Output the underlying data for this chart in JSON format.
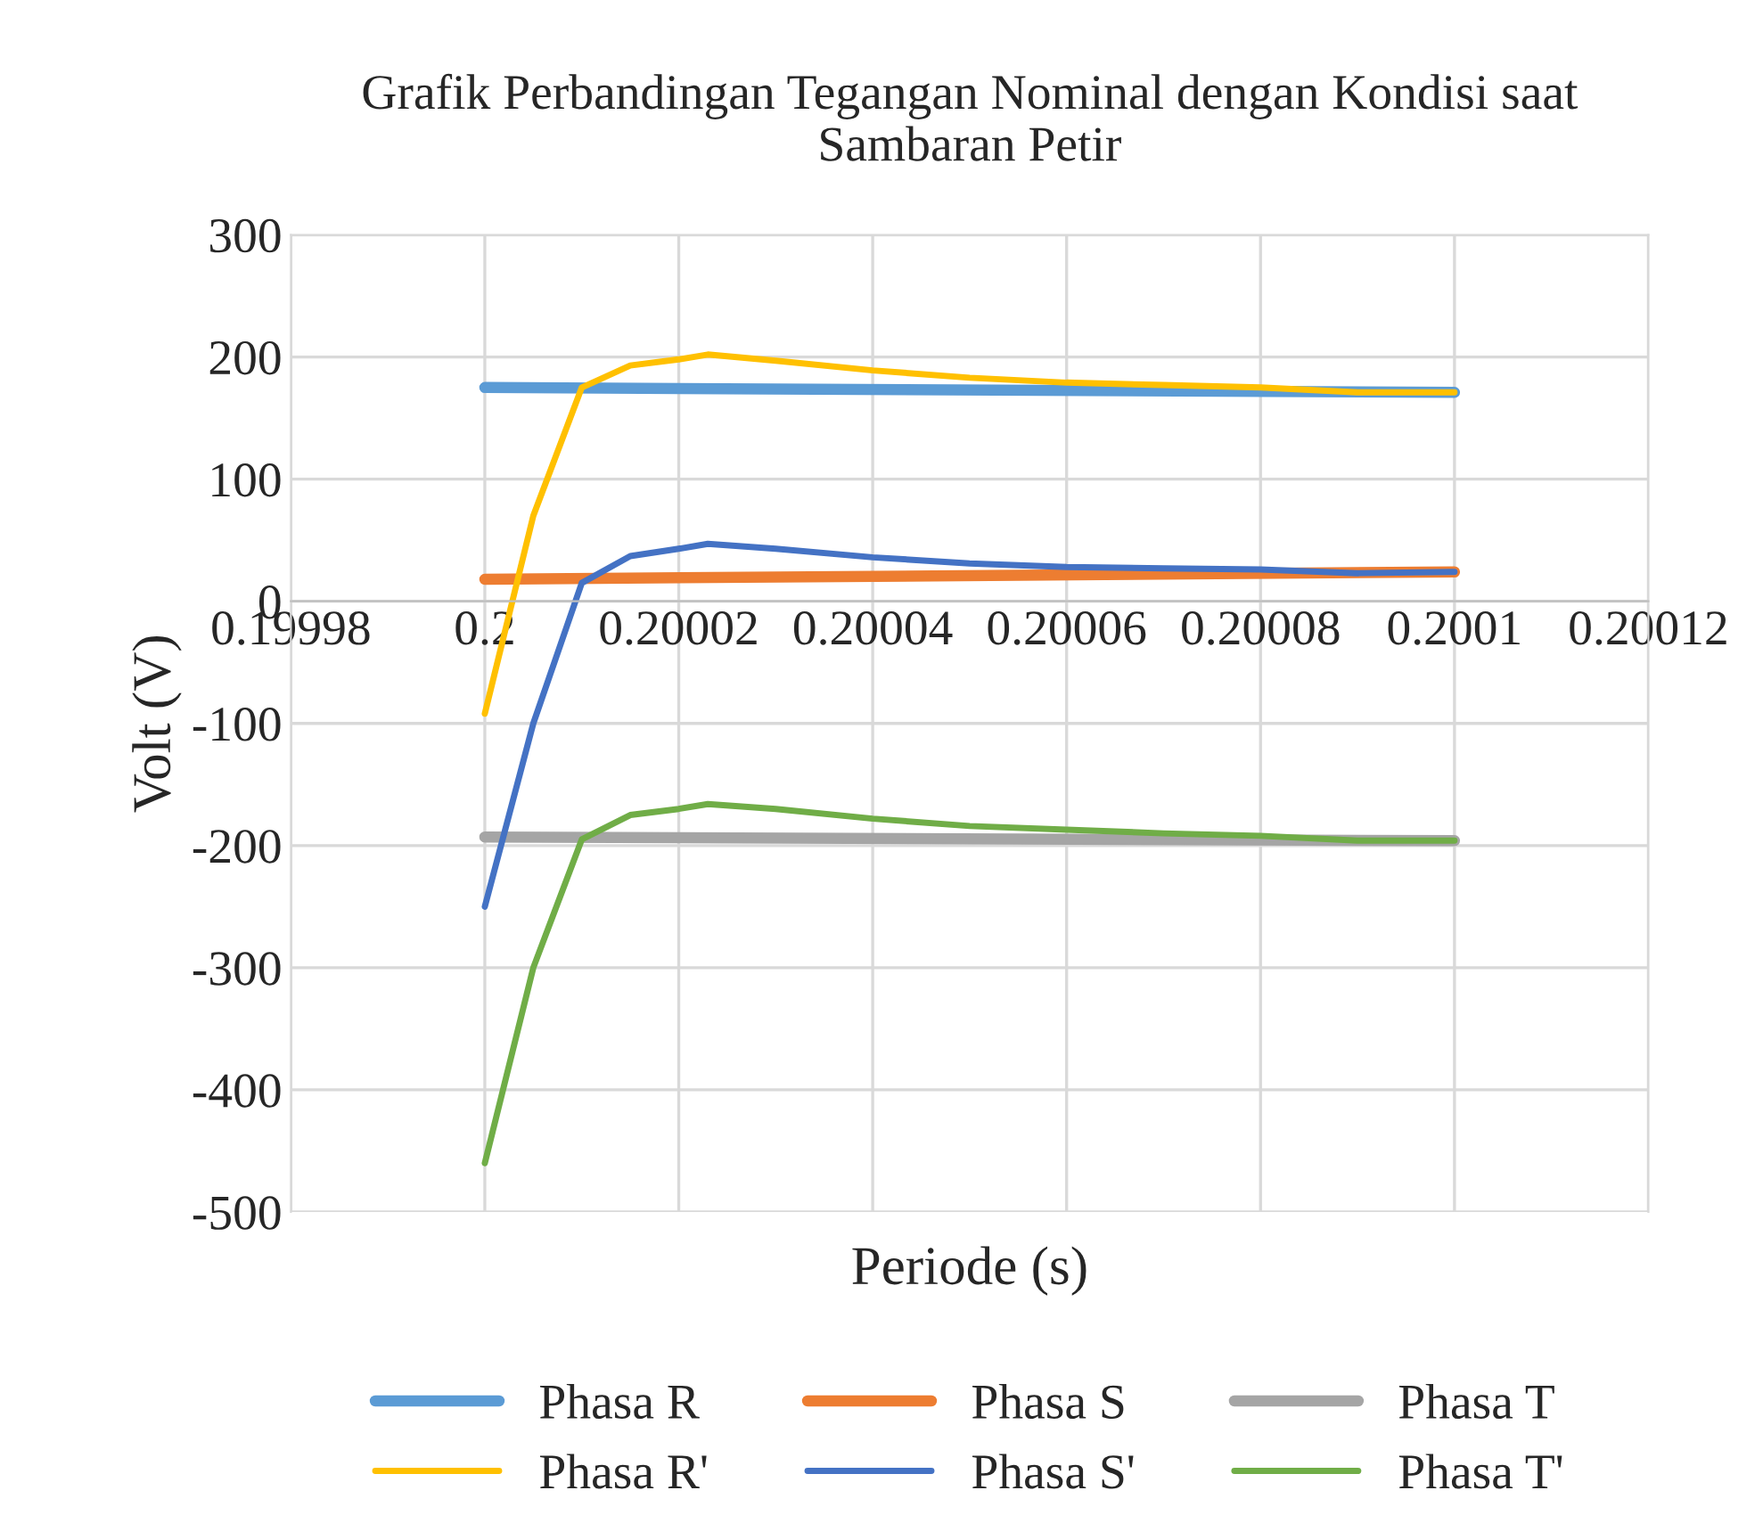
{
  "chart_data": {
    "type": "line",
    "title": "Grafik Perbandingan Tegangan Nominal dengan Kondisi saat\nSambaran Petir",
    "xlabel": "Periode (s)",
    "ylabel": "Volt (V)",
    "xlim": [
      0.19998,
      0.20012
    ],
    "xticks": [
      0.19998,
      0.2,
      0.20002,
      0.20004,
      0.20006,
      0.20008,
      0.2001,
      0.20012
    ],
    "ylim": [
      -500,
      300
    ],
    "yticks": [
      -500,
      -400,
      -300,
      -200,
      -100,
      0,
      100,
      200,
      300
    ],
    "grid": true,
    "legend": "bottom",
    "marker": "none",
    "line_style": "solid",
    "series": [
      {
        "name": "Phasa R",
        "color": "#5b9bd5",
        "x": [
          0.2,
          0.2001
        ],
        "values": [
          175,
          171
        ]
      },
      {
        "name": "Phasa S",
        "color": "#ed7d31",
        "x": [
          0.2,
          0.2001
        ],
        "values": [
          18,
          24
        ]
      },
      {
        "name": "Phasa T",
        "color": "#a5a5a5",
        "x": [
          0.2,
          0.2001
        ],
        "values": [
          -193,
          -196
        ]
      },
      {
        "name": "Phasa R'",
        "color": "#ffc000",
        "x": [
          0.2,
          0.200005,
          0.20001,
          0.200015,
          0.20002,
          0.200023,
          0.20003,
          0.20004,
          0.20005,
          0.20006,
          0.20007,
          0.20008,
          0.20009,
          0.2001
        ],
        "values": [
          -92,
          70,
          175,
          193,
          198,
          202,
          197,
          189,
          183,
          179,
          177,
          175,
          171,
          171
        ]
      },
      {
        "name": "Phasa S'",
        "color": "#4472c4",
        "x": [
          0.2,
          0.200005,
          0.20001,
          0.200015,
          0.20002,
          0.200023,
          0.20003,
          0.20004,
          0.20005,
          0.20006,
          0.20007,
          0.20008,
          0.20009,
          0.2001
        ],
        "values": [
          -250,
          -100,
          15,
          37,
          43,
          47,
          43,
          36,
          31,
          28,
          27,
          26,
          23,
          24
        ]
      },
      {
        "name": "Phasa T'",
        "color": "#70ad47",
        "x": [
          0.2,
          0.200005,
          0.20001,
          0.200015,
          0.20002,
          0.200023,
          0.20003,
          0.20004,
          0.20005,
          0.20006,
          0.20007,
          0.20008,
          0.20009,
          0.2001
        ],
        "values": [
          -460,
          -300,
          -195,
          -175,
          -170,
          -166,
          -170,
          -178,
          -184,
          -187,
          -190,
          -192,
          -196,
          -196
        ]
      }
    ]
  }
}
